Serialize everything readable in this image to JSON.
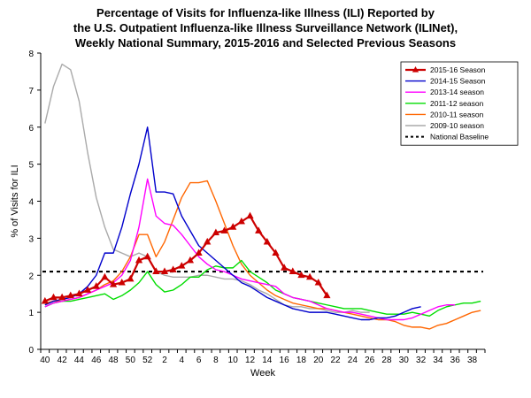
{
  "chart_data": {
    "type": "line",
    "title_lines": [
      "Percentage of Visits for Influenza-like Illness (ILI) Reported by",
      "the U.S. Outpatient Influenza-like Illness Surveillance Network (ILINet),",
      "Weekly National Summary, 2015-2016 and Selected Previous Seasons"
    ],
    "xlabel": "Week",
    "ylabel": "% of Visits for ILI",
    "ylim": [
      0,
      8
    ],
    "yticks": [
      "0",
      "1",
      "2",
      "3",
      "4",
      "5",
      "6",
      "7",
      "8"
    ],
    "xtick_labels": [
      "40",
      "42",
      "44",
      "46",
      "48",
      "50",
      "52",
      "2",
      "4",
      "6",
      "8",
      "10",
      "12",
      "14",
      "16",
      "18",
      "20",
      "22",
      "24",
      "26",
      "28",
      "30",
      "32",
      "34",
      "36",
      "38"
    ],
    "n_weeks": 52,
    "baseline": {
      "name": "National Baseline",
      "value": 2.1,
      "color": "#000000"
    },
    "series": [
      {
        "name": "2015-16 Season",
        "color": "#cc0000",
        "marker": "triangle",
        "values": [
          1.3,
          1.4,
          1.4,
          1.45,
          1.5,
          1.6,
          1.7,
          1.95,
          1.75,
          1.8,
          1.9,
          2.4,
          2.5,
          2.1,
          2.1,
          2.15,
          2.25,
          2.4,
          2.6,
          2.9,
          3.15,
          3.2,
          3.3,
          3.45,
          3.6,
          3.2,
          2.9,
          2.6,
          2.2,
          2.1,
          2.0,
          1.95,
          1.8,
          1.45
        ]
      },
      {
        "name": "2014-15 Season",
        "color": "#0000cc",
        "values": [
          1.2,
          1.3,
          1.35,
          1.4,
          1.5,
          1.7,
          2.0,
          2.6,
          2.6,
          3.3,
          4.2,
          5.0,
          6.0,
          4.25,
          4.25,
          4.2,
          3.6,
          3.2,
          2.8,
          2.6,
          2.4,
          2.2,
          2.0,
          1.8,
          1.7,
          1.55,
          1.4,
          1.3,
          1.2,
          1.1,
          1.05,
          1.0,
          1.0,
          1.0,
          0.95,
          0.9,
          0.85,
          0.8,
          0.8,
          0.85,
          0.85,
          0.9,
          1.0,
          1.1,
          1.15
        ]
      },
      {
        "name": "2013-14 season",
        "color": "#ff00ff",
        "values": [
          1.15,
          1.25,
          1.3,
          1.35,
          1.4,
          1.5,
          1.6,
          1.7,
          1.8,
          2.0,
          2.4,
          3.3,
          4.6,
          3.6,
          3.4,
          3.35,
          3.1,
          2.8,
          2.5,
          2.3,
          2.15,
          2.1,
          2.0,
          1.9,
          1.85,
          1.8,
          1.75,
          1.7,
          1.5,
          1.4,
          1.35,
          1.3,
          1.2,
          1.1,
          1.05,
          1.0,
          1.0,
          0.95,
          0.9,
          0.85,
          0.8,
          0.8,
          0.8,
          0.85,
          0.95,
          1.05,
          1.15,
          1.2,
          1.2
        ]
      },
      {
        "name": "2011-12 season",
        "color": "#00dd00",
        "values": [
          1.15,
          1.25,
          1.3,
          1.3,
          1.35,
          1.4,
          1.45,
          1.5,
          1.35,
          1.45,
          1.6,
          1.8,
          2.1,
          1.75,
          1.55,
          1.6,
          1.75,
          1.95,
          1.95,
          2.15,
          2.25,
          2.2,
          2.2,
          2.4,
          2.1,
          1.95,
          1.8,
          1.6,
          1.5,
          1.4,
          1.35,
          1.3,
          1.25,
          1.2,
          1.15,
          1.1,
          1.1,
          1.1,
          1.05,
          1.0,
          0.95,
          0.95,
          0.95,
          1.0,
          0.95,
          0.9,
          1.05,
          1.15,
          1.2,
          1.25,
          1.25,
          1.3
        ]
      },
      {
        "name": "2010-11 season",
        "color": "#ff6600",
        "values": [
          1.25,
          1.3,
          1.3,
          1.35,
          1.4,
          1.5,
          1.6,
          1.75,
          1.85,
          2.1,
          2.5,
          3.1,
          3.1,
          2.5,
          2.9,
          3.5,
          4.1,
          4.5,
          4.5,
          4.55,
          4.0,
          3.4,
          2.8,
          2.3,
          2.0,
          1.8,
          1.6,
          1.45,
          1.35,
          1.25,
          1.2,
          1.15,
          1.1,
          1.1,
          1.05,
          1.0,
          0.95,
          0.9,
          0.85,
          0.8,
          0.8,
          0.75,
          0.65,
          0.6,
          0.6,
          0.55,
          0.65,
          0.7,
          0.8,
          0.9,
          1.0,
          1.05
        ]
      },
      {
        "name": "2009-10 season",
        "color": "#aaaaaa",
        "values": [
          6.1,
          7.1,
          7.7,
          7.55,
          6.7,
          5.3,
          4.1,
          3.3,
          2.7,
          2.6,
          2.5,
          2.6,
          2.5,
          2.1,
          2.0,
          1.95,
          1.95,
          1.95,
          2.0,
          2.0,
          1.95,
          1.9,
          1.9,
          1.85,
          1.75,
          1.6,
          1.5,
          1.35,
          1.2,
          1.15,
          1.15,
          1.1,
          1.1,
          1.05,
          1.0,
          1.0,
          1.05,
          1.0,
          1.0
        ]
      }
    ]
  }
}
